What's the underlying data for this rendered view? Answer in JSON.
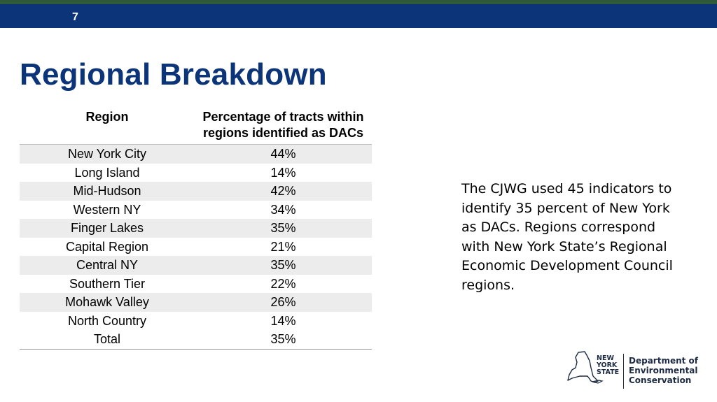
{
  "slide": {
    "number": "7"
  },
  "title": "Regional Breakdown",
  "table": {
    "headers": [
      "Region",
      "Percentage of tracts within regions identified as DACs"
    ],
    "rows": [
      [
        "New York City",
        "44%"
      ],
      [
        "Long Island",
        "14%"
      ],
      [
        "Mid-Hudson",
        "42%"
      ],
      [
        "Western NY",
        "34%"
      ],
      [
        "Finger Lakes",
        "35%"
      ],
      [
        "Capital Region",
        "21%"
      ],
      [
        "Central NY",
        "35%"
      ],
      [
        "Southern Tier",
        "22%"
      ],
      [
        "Mohawk Valley",
        "26%"
      ],
      [
        "North Country",
        "14%"
      ],
      [
        "Total",
        "35%"
      ]
    ]
  },
  "description": "The CJWG used 45 indicators to identify 35 percent of New York as DACs. Regions correspond with New York State’s Regional Economic Development Council regions.",
  "logo": {
    "state_lines": [
      "NEW",
      "YORK",
      "STATE"
    ],
    "agency_lines": [
      "Department of",
      "Environmental",
      "Conservation"
    ]
  },
  "colors": {
    "brand_navy": "#0b3479",
    "top_accent_green": "#2f5a3a",
    "row_shade": "#ececec"
  }
}
